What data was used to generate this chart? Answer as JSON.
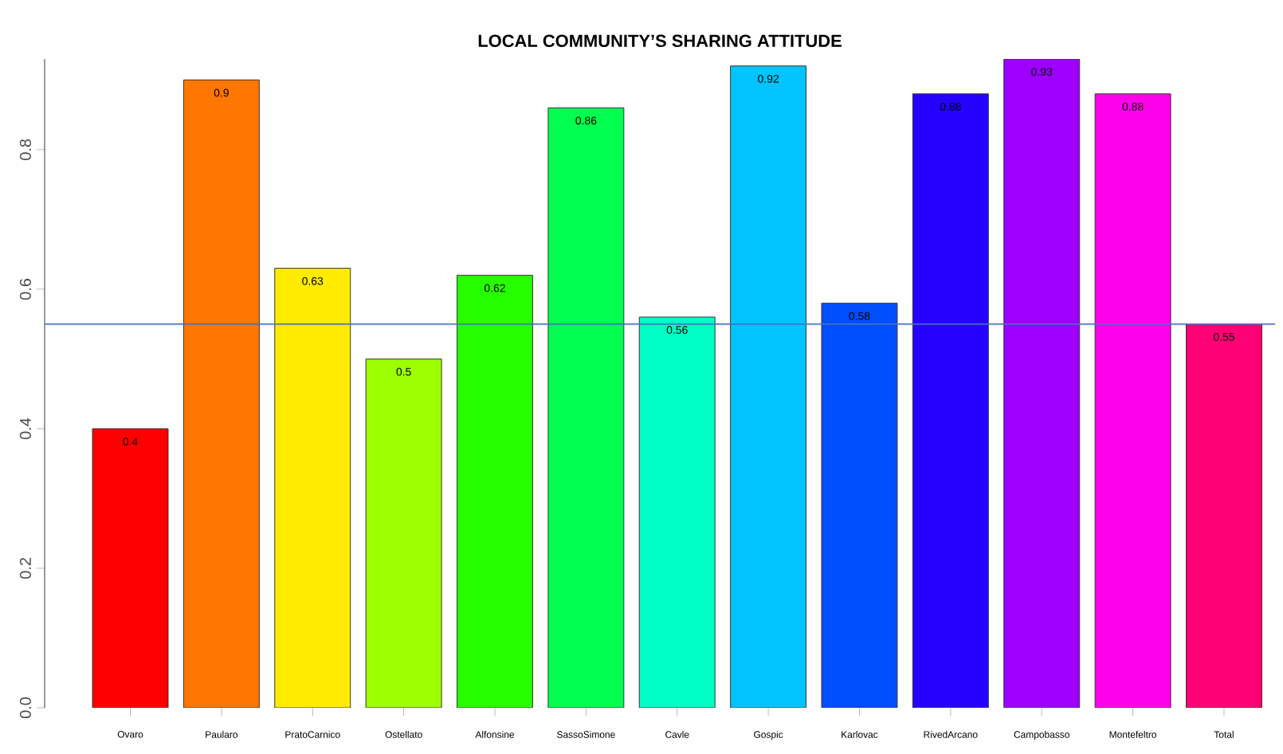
{
  "chart_data": {
    "type": "bar",
    "title": "LOCAL COMMUNITY’S SHARING ATTITUDE",
    "categories": [
      "Ovaro",
      "Paularo",
      "PratoCarnico",
      "Ostellato",
      "Alfonsine",
      "SassoSimone",
      "Cavle",
      "Gospic",
      "Karlovac",
      "RivedArcano",
      "Campobasso",
      "Montefeltro",
      "Total"
    ],
    "values": [
      0.4,
      0.9,
      0.63,
      0.5,
      0.62,
      0.86,
      0.56,
      0.92,
      0.58,
      0.88,
      0.93,
      0.88,
      0.55
    ],
    "colors": [
      "#ff0000",
      "#ff7600",
      "#ffeb00",
      "#9dff00",
      "#27ff00",
      "#00ff4e",
      "#00ffc4",
      "#00c4ff",
      "#004eff",
      "#2700ff",
      "#9d00ff",
      "#ff00eb",
      "#ff0076"
    ],
    "ylim": [
      0,
      0.93
    ],
    "yticks": [
      {
        "value": 0,
        "label": "0.0"
      },
      {
        "value": 0.2,
        "label": "0.2"
      },
      {
        "value": 0.4,
        "label": "0.4"
      },
      {
        "value": 0.6,
        "label": "0.6"
      },
      {
        "value": 0.8,
        "label": "0.8"
      }
    ],
    "data_labels": true,
    "ref_lines": [
      {
        "axis": "y",
        "value": 0.55,
        "color": "#4472c4"
      }
    ]
  }
}
